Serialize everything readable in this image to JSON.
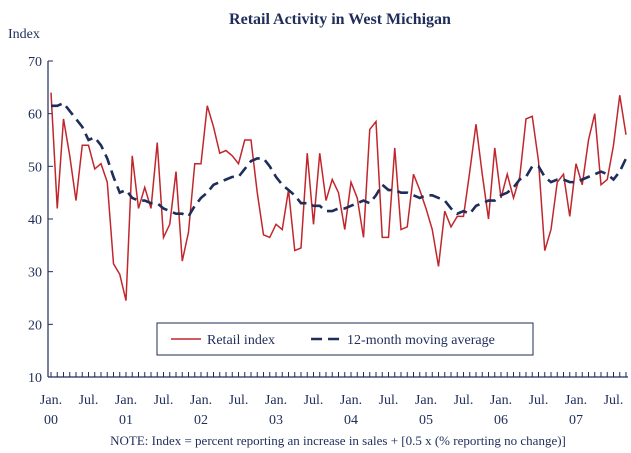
{
  "chart_data": {
    "type": "line",
    "title": "Retail Activity in West Michigan",
    "y_label": "Index",
    "note": "NOTE:  Index = percent reporting an increase in sales + [0.5 x (% reporting no change)]",
    "categories": [
      "Jan. 00",
      null,
      null,
      null,
      null,
      null,
      "Jul.",
      null,
      null,
      null,
      null,
      null,
      "Jan. 01",
      null,
      null,
      null,
      null,
      null,
      "Jul.",
      null,
      null,
      null,
      null,
      null,
      "Jan. 02",
      null,
      null,
      null,
      null,
      null,
      "Jul.",
      null,
      null,
      null,
      null,
      null,
      "Jan. 03",
      null,
      null,
      null,
      null,
      null,
      "Jul.",
      null,
      null,
      null,
      null,
      null,
      "Jan. 04",
      null,
      null,
      null,
      null,
      null,
      "Jul.",
      null,
      null,
      null,
      null,
      null,
      "Jan. 05",
      null,
      null,
      null,
      null,
      null,
      "Jul.",
      null,
      null,
      null,
      null,
      null,
      "Jan. 06",
      null,
      null,
      null,
      null,
      null,
      "Jul.",
      null,
      null,
      null,
      null,
      null,
      "Jan. 07",
      null,
      null,
      null,
      null,
      null,
      "Jul.",
      null,
      null
    ],
    "series": [
      {
        "name": "Retail index",
        "color": "#c0272d",
        "dash": false,
        "values": [
          64,
          42,
          59,
          52,
          43.5,
          54,
          54,
          49.5,
          50.5,
          47,
          31.5,
          29.5,
          24.5,
          52,
          42,
          46,
          42,
          54.5,
          36.5,
          39,
          49,
          32,
          37.5,
          50.5,
          50.5,
          61.5,
          57.5,
          52.5,
          53,
          52,
          50.5,
          55,
          55,
          45,
          37,
          36.5,
          39,
          38,
          45.5,
          34,
          34.5,
          52.5,
          39,
          52.5,
          43.5,
          47.5,
          45,
          38,
          47,
          44,
          36.5,
          57,
          58.5,
          36.5,
          36.5,
          53.5,
          38,
          38.5,
          48.5,
          45.5,
          42,
          38,
          31,
          41.5,
          38.5,
          40.5,
          40.5,
          49,
          58,
          48.5,
          40,
          53.5,
          44,
          48.5,
          44,
          48,
          59,
          59.5,
          51,
          34,
          38,
          47,
          48.5,
          40.5,
          50.5,
          46.5,
          55,
          60,
          46.5,
          47.5,
          54,
          63.5,
          56
        ]
      },
      {
        "name": "12-month moving average",
        "color": "#1f2d5a",
        "dash": true,
        "values": [
          61.5,
          61.5,
          62,
          60.5,
          59,
          57.5,
          55,
          55.5,
          54,
          51.5,
          48,
          45,
          45.5,
          44,
          43.5,
          43.5,
          43,
          43,
          42,
          41.5,
          41,
          41,
          40.5,
          42.5,
          44,
          45,
          46.5,
          47,
          47.5,
          48,
          48,
          49.5,
          51,
          51.5,
          51.5,
          50,
          48,
          46.5,
          45.5,
          44.5,
          43,
          43,
          42.5,
          42.5,
          41.5,
          41.5,
          42,
          42,
          42.5,
          43,
          43.5,
          43,
          44.5,
          46.5,
          45.5,
          45.5,
          45,
          45,
          44.5,
          44,
          44.5,
          44.5,
          44,
          43.5,
          42,
          41,
          41.5,
          41,
          42.5,
          43,
          43.5,
          43.5,
          44.5,
          45,
          46,
          47.5,
          48,
          50,
          50,
          48,
          47,
          47.5,
          47.5,
          47,
          47,
          47.5,
          48,
          48.5,
          49,
          48.5,
          47.5,
          49,
          51.5
        ]
      }
    ],
    "ylim": [
      10,
      70
    ],
    "yticks": [
      10,
      20,
      30,
      40,
      50,
      60,
      70
    ],
    "grid": false,
    "legend": "lower center"
  }
}
